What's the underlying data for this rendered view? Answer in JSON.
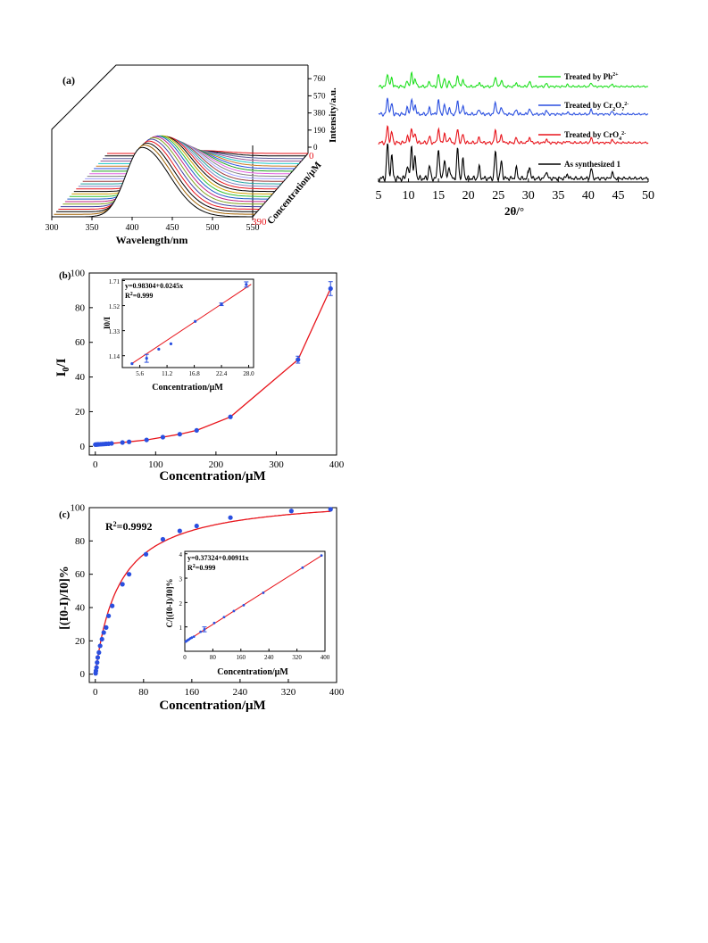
{
  "colors": {
    "fit_line": "#e8141b",
    "points": "#2a4fe0",
    "axis": "#000000"
  },
  "panel_a": {
    "label": "(a)",
    "x_label": "Wavelength/nm",
    "x_ticks": [
      "300",
      "350",
      "400",
      "450",
      "500",
      "550"
    ],
    "z_label": "Intensity/a.u.",
    "z_ticks": [
      "0",
      "190",
      "380",
      "570",
      "760"
    ],
    "y_label": "Concentration/μM",
    "y_tick_front": "0",
    "y_tick_back": "390",
    "chart_data": {
      "type": "line",
      "x_range": [
        300,
        550
      ],
      "z_range": [
        0,
        950
      ],
      "concentration_range": [
        0,
        390
      ],
      "peak_wavelength": 412,
      "series_peak_intensity": [
        30,
        55,
        85,
        115,
        150,
        190,
        230,
        275,
        320,
        365,
        410,
        455,
        500,
        545,
        590,
        630,
        670,
        705,
        740,
        770,
        795,
        815,
        830,
        845,
        860,
        870
      ],
      "colors": [
        "#e8141b",
        "#000000",
        "#5a5a9a",
        "#9a5a9a",
        "#1ac8c8",
        "#c87820",
        "#2a4fe0",
        "#20a020",
        "#e060e0",
        "#808080",
        "#a0a0ff",
        "#9a3a3a",
        "#20a0a0",
        "#8080c0",
        "#e8141b",
        "#000000",
        "#d0a000",
        "#30c030",
        "#1a5ac8",
        "#c02080",
        "#80a020",
        "#4040a0",
        "#e8141b",
        "#000000",
        "#a06000",
        "#000000"
      ]
    }
  },
  "panel_xrd": {
    "x_label": "2θ/°",
    "x_ticks": [
      "5",
      "10",
      "15",
      "20",
      "25",
      "30",
      "35",
      "40",
      "45",
      "50"
    ],
    "chart_data": {
      "type": "line",
      "x_range": [
        5,
        50
      ],
      "series": [
        {
          "name": "As synthesized 1",
          "color": "#000000"
        },
        {
          "name": "Treated by CrO4 2-",
          "color": "#e8141b"
        },
        {
          "name": "Treated by Cr2O7 2-",
          "color": "#2a4fe0"
        },
        {
          "name": "Treated by Pb2+",
          "color": "#20e020"
        }
      ],
      "peaks": [
        6.5,
        7.2,
        9.8,
        10.5,
        11.1,
        13.5,
        15.0,
        16.0,
        16.8,
        18.2,
        19.1,
        21.8,
        24.5,
        25.5,
        28.0,
        30.2,
        33.0,
        36.5,
        40.5,
        44.0
      ]
    },
    "legend": [
      {
        "pre": "Treated by Pb",
        "sub": "",
        "sub2": "",
        "sup": "2+"
      },
      {
        "pre": "Treated by Cr",
        "sub": "2",
        "mid": "O",
        "sub2": "7",
        "sup": "2-"
      },
      {
        "pre": "Treated by CrO",
        "sub": "4",
        "sub2": "",
        "sup": "2-"
      },
      {
        "pre": "As synthesized 1",
        "sub": "",
        "sub2": "",
        "sup": ""
      }
    ]
  },
  "panel_b": {
    "label": "(b)",
    "y_label_main": "I",
    "y_label_sub": "0",
    "y_label_end": "/I",
    "x_label": "Concentration/μM",
    "chart_data": {
      "type": "scatter",
      "xlim": [
        -10,
        400
      ],
      "ylim": [
        -5,
        100
      ],
      "x_ticks": [
        0,
        100,
        200,
        300,
        400
      ],
      "y_ticks": [
        0,
        20,
        40,
        60,
        80,
        100
      ],
      "points": [
        {
          "x": 0,
          "y": 1.0
        },
        {
          "x": 2,
          "y": 1.05
        },
        {
          "x": 4,
          "y": 1.1
        },
        {
          "x": 6,
          "y": 1.15
        },
        {
          "x": 9,
          "y": 1.2
        },
        {
          "x": 12,
          "y": 1.27
        },
        {
          "x": 15,
          "y": 1.35
        },
        {
          "x": 18,
          "y": 1.42
        },
        {
          "x": 22,
          "y": 1.5
        },
        {
          "x": 27,
          "y": 1.68
        },
        {
          "x": 45,
          "y": 2.2
        },
        {
          "x": 56,
          "y": 2.6
        },
        {
          "x": 85,
          "y": 3.7
        },
        {
          "x": 112,
          "y": 5.3
        },
        {
          "x": 140,
          "y": 7.0
        },
        {
          "x": 168,
          "y": 9.2
        },
        {
          "x": 224,
          "y": 17.0
        },
        {
          "x": 336,
          "y": 50.0,
          "err": 2
        },
        {
          "x": 390,
          "y": 91.0,
          "err": 4
        }
      ]
    },
    "inset": {
      "equation": "y=0.98304+0.0245x",
      "r2_pre": "R",
      "r2_sup": "2",
      "r2_post": "=0.999",
      "x_label": "Concentration/μM",
      "y_label": "I0/I",
      "chart_data": {
        "type": "scatter",
        "xlim": [
          2,
          29
        ],
        "ylim": [
          1.05,
          1.72
        ],
        "x_ticks": [
          5.6,
          11.2,
          16.8,
          22.4,
          28.0
        ],
        "y_ticks": [
          1.14,
          1.33,
          1.52,
          1.71
        ],
        "fit": {
          "intercept": 0.98304,
          "slope": 0.0245
        },
        "points": [
          {
            "x": 4,
            "y": 1.08
          },
          {
            "x": 7,
            "y": 1.12,
            "err": 0.03
          },
          {
            "x": 9.5,
            "y": 1.19
          },
          {
            "x": 12,
            "y": 1.23
          },
          {
            "x": 17,
            "y": 1.4
          },
          {
            "x": 22.4,
            "y": 1.53,
            "err": 0.01
          },
          {
            "x": 27.5,
            "y": 1.68,
            "err": 0.02
          }
        ]
      }
    }
  },
  "panel_c": {
    "label": "(c)",
    "r2_label_pre": "R",
    "r2_label_sup": "2",
    "r2_label_post": "=0.9992",
    "y_label": "[(I0-I)/I0]%",
    "x_label": "Concentration/μM",
    "chart_data": {
      "type": "scatter",
      "xlim": [
        -10,
        400
      ],
      "ylim": [
        -5,
        100
      ],
      "x_ticks": [
        0,
        80,
        160,
        240,
        320,
        400
      ],
      "y_ticks": [
        0,
        20,
        40,
        60,
        80,
        100
      ],
      "points": [
        {
          "x": 0.5,
          "y": 0.5
        },
        {
          "x": 1,
          "y": 2
        },
        {
          "x": 2,
          "y": 4
        },
        {
          "x": 3,
          "y": 7
        },
        {
          "x": 4,
          "y": 10
        },
        {
          "x": 6,
          "y": 13
        },
        {
          "x": 8,
          "y": 17
        },
        {
          "x": 11,
          "y": 21
        },
        {
          "x": 14,
          "y": 25
        },
        {
          "x": 18,
          "y": 28
        },
        {
          "x": 22,
          "y": 35
        },
        {
          "x": 28,
          "y": 41
        },
        {
          "x": 45,
          "y": 54
        },
        {
          "x": 56,
          "y": 60
        },
        {
          "x": 84,
          "y": 72
        },
        {
          "x": 112,
          "y": 81
        },
        {
          "x": 140,
          "y": 86
        },
        {
          "x": 168,
          "y": 89
        },
        {
          "x": 224,
          "y": 94
        },
        {
          "x": 325,
          "y": 98
        },
        {
          "x": 390,
          "y": 99
        }
      ]
    },
    "inset": {
      "equation": "y=0.37324+0.00911x",
      "r2_pre": "R",
      "r2_sup": "2",
      "r2_post": "=0.999",
      "x_label": "Concentration/μM",
      "y_label": "C/[(I0-I)/I0]%",
      "chart_data": {
        "type": "scatter",
        "xlim": [
          0,
          400
        ],
        "ylim": [
          0,
          4.1
        ],
        "x_ticks": [
          0,
          80,
          160,
          240,
          320,
          400
        ],
        "y_ticks": [
          1,
          2,
          3,
          4
        ],
        "fit": {
          "intercept": 0.37324,
          "slope": 0.00911
        },
        "points": [
          {
            "x": 3,
            "y": 0.4
          },
          {
            "x": 6,
            "y": 0.43
          },
          {
            "x": 9,
            "y": 0.46
          },
          {
            "x": 12,
            "y": 0.49
          },
          {
            "x": 16,
            "y": 0.53
          },
          {
            "x": 20,
            "y": 0.56
          },
          {
            "x": 26,
            "y": 0.6
          },
          {
            "x": 45,
            "y": 0.8
          },
          {
            "x": 56,
            "y": 0.9,
            "err": 0.1
          },
          {
            "x": 84,
            "y": 1.16
          },
          {
            "x": 112,
            "y": 1.4
          },
          {
            "x": 140,
            "y": 1.65
          },
          {
            "x": 168,
            "y": 1.89
          },
          {
            "x": 224,
            "y": 2.4
          },
          {
            "x": 336,
            "y": 3.43
          },
          {
            "x": 390,
            "y": 3.93
          }
        ]
      }
    }
  }
}
